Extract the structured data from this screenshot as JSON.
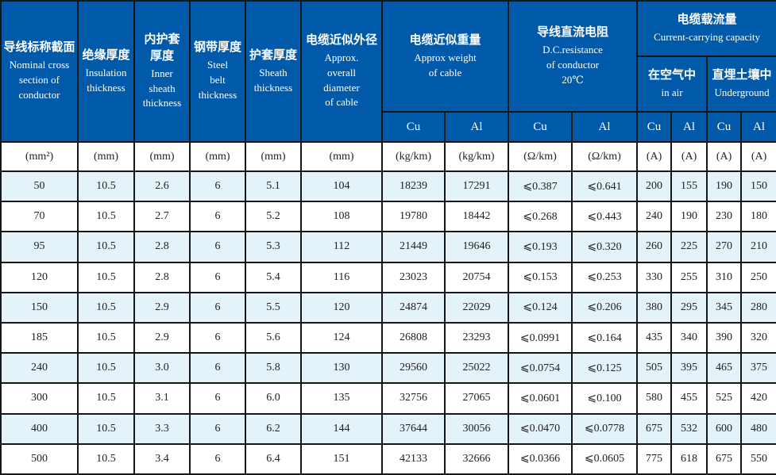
{
  "colors": {
    "header_bg": "#0059a9",
    "row_alt_bg": "#e4f2fa",
    "border": "#161616",
    "header_text": "#ffffff",
    "body_text": "#222222"
  },
  "table": {
    "header": {
      "nominal_section": {
        "cn": "导线标称截面",
        "en": "Nominal  cross\nsection of\nconductor"
      },
      "insulation": {
        "cn": "绝缘厚度",
        "en": "Insulation\nthickness"
      },
      "inner_sheath": {
        "cn": "内护套\n厚度",
        "en": "Inner\nsheath\nthickness"
      },
      "steel_belt": {
        "cn": "钢带厚度",
        "en": "Steel\nbelt\nthickness"
      },
      "sheath": {
        "cn": "护套厚度",
        "en": "Sheath\nthickness"
      },
      "diameter": {
        "cn": "电缆近似外径",
        "en": "Approx.\noverall\ndiameter\nof cable"
      },
      "weight": {
        "cn": "电缆近似重量",
        "en": "Approx weight\nof cable"
      },
      "resistance": {
        "cn": "导线直流电阻",
        "en": "D.C.resistance\nof conductor\n20℃"
      },
      "capacity": {
        "cn": "电缆载流量",
        "en": "Current-carrying capacity"
      },
      "in_air": {
        "cn": "在空气中",
        "en": "in air"
      },
      "underground": {
        "cn": "直埋土壤中",
        "en": "Underground"
      },
      "conductors": [
        "Cu",
        "Al",
        "Cu",
        "Al",
        "Cu",
        "Al",
        "Cu",
        "Al"
      ]
    },
    "units": [
      "(mm²)",
      "(mm)",
      "(mm)",
      "(mm)",
      "(mm)",
      "(mm)",
      "(kg/km)",
      "(kg/km)",
      "(Ω/km)",
      "(Ω/km)",
      "(A)",
      "(A)",
      "(A)",
      "(A)"
    ],
    "rows": [
      [
        "50",
        "10.5",
        "2.6",
        "6",
        "5.1",
        "104",
        "18239",
        "17291",
        "⩽0.387",
        "⩽0.641",
        "200",
        "155",
        "190",
        "150"
      ],
      [
        "70",
        "10.5",
        "2.7",
        "6",
        "5.2",
        "108",
        "19780",
        "18442",
        "⩽0.268",
        "⩽0.443",
        "240",
        "190",
        "230",
        "180"
      ],
      [
        "95",
        "10.5",
        "2.8",
        "6",
        "5.3",
        "112",
        "21449",
        "19646",
        "⩽0.193",
        "⩽0.320",
        "260",
        "225",
        "270",
        "210"
      ],
      [
        "120",
        "10.5",
        "2.8",
        "6",
        "5.4",
        "116",
        "23023",
        "20754",
        "⩽0.153",
        "⩽0.253",
        "330",
        "255",
        "310",
        "250"
      ],
      [
        "150",
        "10.5",
        "2.9",
        "6",
        "5.5",
        "120",
        "24874",
        "22029",
        "⩽0.124",
        "⩽0.206",
        "380",
        "295",
        "345",
        "280"
      ],
      [
        "185",
        "10.5",
        "2.9",
        "6",
        "5.6",
        "124",
        "26808",
        "23293",
        "⩽0.0991",
        "⩽0.164",
        "435",
        "340",
        "390",
        "320"
      ],
      [
        "240",
        "10.5",
        "3.0",
        "6",
        "5.8",
        "130",
        "29560",
        "25022",
        "⩽0.0754",
        "⩽0.125",
        "505",
        "395",
        "465",
        "375"
      ],
      [
        "300",
        "10.5",
        "3.1",
        "6",
        "6.0",
        "135",
        "32756",
        "27065",
        "⩽0.0601",
        "⩽0.100",
        "580",
        "455",
        "525",
        "420"
      ],
      [
        "400",
        "10.5",
        "3.3",
        "6",
        "6.2",
        "144",
        "37644",
        "30056",
        "⩽0.0470",
        "⩽0.0778",
        "675",
        "532",
        "600",
        "480"
      ],
      [
        "500",
        "10.5",
        "3.4",
        "6",
        "6.4",
        "151",
        "42133",
        "32666",
        "⩽0.0366",
        "⩽0.0605",
        "775",
        "618",
        "675",
        "550"
      ]
    ]
  }
}
